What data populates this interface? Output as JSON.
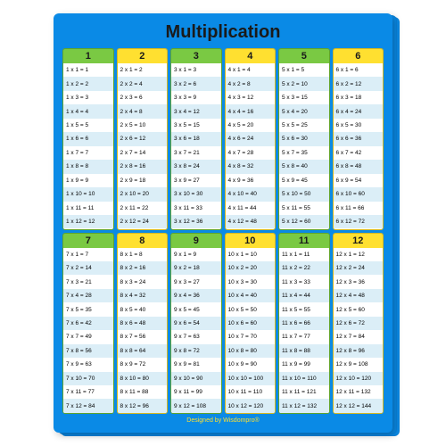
{
  "title": "Multiplication",
  "title_fontsize": 20,
  "title_color": "#1a1a1a",
  "poster_bg": "#0a8ae6",
  "footer_text": "Designed by Wisdompro®",
  "footer_fontsize": 7,
  "footer_color": "#ffe030",
  "cell_fontsize": 6.5,
  "header_fontsize": 11,
  "alt_row_bg": "#dbeef7",
  "row_bg": "#ffffff",
  "columns": [
    {
      "n": 1,
      "header_bg": "#7ac943",
      "border": "#5ea32e"
    },
    {
      "n": 2,
      "header_bg": "#ffe030",
      "border": "#d4b820"
    },
    {
      "n": 3,
      "header_bg": "#7ac943",
      "border": "#5ea32e"
    },
    {
      "n": 4,
      "header_bg": "#ffe030",
      "border": "#d4b820"
    },
    {
      "n": 5,
      "header_bg": "#7ac943",
      "border": "#5ea32e"
    },
    {
      "n": 6,
      "header_bg": "#ffe030",
      "border": "#d4b820"
    },
    {
      "n": 7,
      "header_bg": "#7ac943",
      "border": "#5ea32e"
    },
    {
      "n": 8,
      "header_bg": "#ffe030",
      "border": "#d4b820"
    },
    {
      "n": 9,
      "header_bg": "#7ac943",
      "border": "#5ea32e"
    },
    {
      "n": 10,
      "header_bg": "#ffe030",
      "border": "#d4b820"
    },
    {
      "n": 11,
      "header_bg": "#7ac943",
      "border": "#5ea32e"
    },
    {
      "n": 12,
      "header_bg": "#ffe030",
      "border": "#d4b820"
    }
  ],
  "multipliers": [
    1,
    2,
    3,
    4,
    5,
    6,
    7,
    8,
    9,
    10,
    11,
    12
  ]
}
